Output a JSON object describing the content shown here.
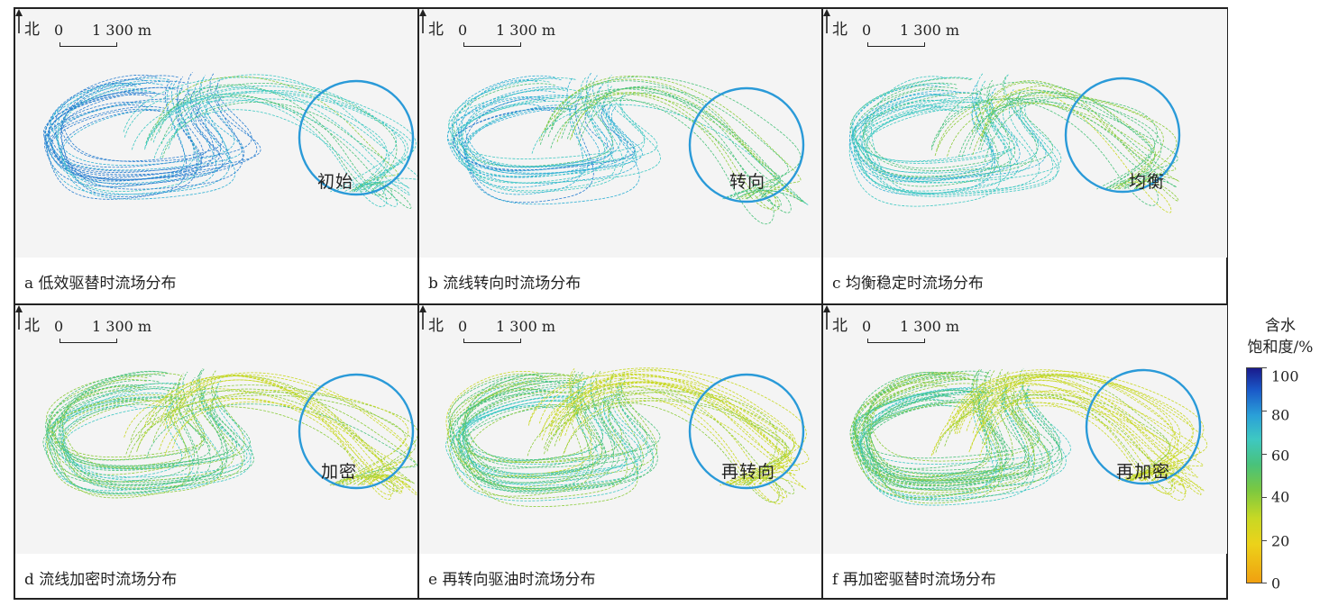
{
  "scale_bar": {
    "zero": "0",
    "length": "1 300 m"
  },
  "north": "北",
  "panels": [
    {
      "caption": "a 低效驱替时流场分布",
      "stage": "初始"
    },
    {
      "caption": "b 流线转向时流场分布",
      "stage": "转向"
    },
    {
      "caption": "c 均衡稳定时流场分布",
      "stage": "均衡"
    },
    {
      "caption": "d 流线加密时流场分布",
      "stage": "加密"
    },
    {
      "caption": "e 再转向驱油时流场分布",
      "stage": "再转向"
    },
    {
      "caption": "f 再加密驱替时流场分布",
      "stage": "再加密"
    }
  ],
  "legend": {
    "title_line1": "含水",
    "title_line2": "饱和度/%",
    "ticks": [
      "100",
      "80",
      "60",
      "40",
      "20",
      "0"
    ],
    "colors": {
      "high": "#1a1b8c",
      "mid": "#49c27a",
      "low": "#f0a010"
    }
  },
  "circle_color": "#2a9ad8"
}
